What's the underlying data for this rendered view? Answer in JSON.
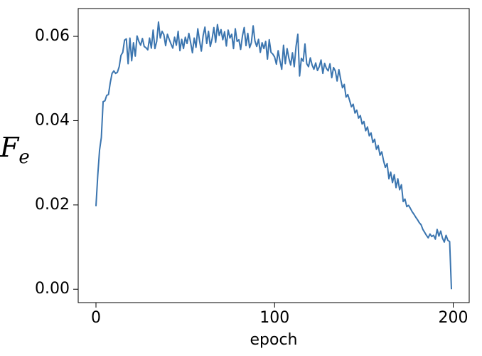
{
  "chart_data": {
    "type": "line",
    "xlabel": "epoch",
    "ylabel": "F",
    "ylabel_subscript": "e",
    "x": [
      0,
      1,
      2,
      3,
      4,
      5,
      6,
      7,
      8,
      9,
      10,
      11,
      12,
      13,
      14,
      15,
      16,
      17,
      18,
      19,
      20,
      21,
      22,
      23,
      24,
      25,
      26,
      27,
      28,
      29,
      30,
      31,
      32,
      33,
      34,
      35,
      36,
      37,
      38,
      39,
      40,
      41,
      42,
      43,
      44,
      45,
      46,
      47,
      48,
      49,
      50,
      51,
      52,
      53,
      54,
      55,
      56,
      57,
      58,
      59,
      60,
      61,
      62,
      63,
      64,
      65,
      66,
      67,
      68,
      69,
      70,
      71,
      72,
      73,
      74,
      75,
      76,
      77,
      78,
      79,
      80,
      81,
      82,
      83,
      84,
      85,
      86,
      87,
      88,
      89,
      90,
      91,
      92,
      93,
      94,
      95,
      96,
      97,
      98,
      99,
      100,
      101,
      102,
      103,
      104,
      105,
      106,
      107,
      108,
      109,
      110,
      111,
      112,
      113,
      114,
      115,
      116,
      117,
      118,
      119,
      120,
      121,
      122,
      123,
      124,
      125,
      126,
      127,
      128,
      129,
      130,
      131,
      132,
      133,
      134,
      135,
      136,
      137,
      138,
      139,
      140,
      141,
      142,
      143,
      144,
      145,
      146,
      147,
      148,
      149,
      150,
      151,
      152,
      153,
      154,
      155,
      156,
      157,
      158,
      159,
      160,
      161,
      162,
      163,
      164,
      165,
      166,
      167,
      168,
      169,
      170,
      171,
      172,
      173,
      174,
      175,
      176,
      177,
      178,
      179,
      180,
      181,
      182,
      183,
      184,
      185,
      186,
      187,
      188,
      189,
      190,
      191,
      192,
      193,
      194,
      195,
      196,
      197,
      198,
      199
    ],
    "series": [
      {
        "name": "F_e",
        "color": "#3b75af",
        "values": [
          0.0197,
          0.027,
          0.033,
          0.036,
          0.0445,
          0.0447,
          0.046,
          0.0462,
          0.049,
          0.0512,
          0.0518,
          0.0512,
          0.0515,
          0.0528,
          0.0555,
          0.0562,
          0.0591,
          0.0594,
          0.0535,
          0.0596,
          0.0542,
          0.0585,
          0.0553,
          0.0601,
          0.0588,
          0.0579,
          0.0595,
          0.0576,
          0.0573,
          0.0568,
          0.0596,
          0.0572,
          0.0615,
          0.0571,
          0.0588,
          0.0634,
          0.0596,
          0.0612,
          0.0604,
          0.0578,
          0.0605,
          0.0593,
          0.0582,
          0.0572,
          0.0598,
          0.0579,
          0.0612,
          0.0566,
          0.0593,
          0.0571,
          0.0598,
          0.0583,
          0.0607,
          0.0585,
          0.0561,
          0.0596,
          0.0574,
          0.0618,
          0.0589,
          0.0565,
          0.0602,
          0.0622,
          0.0583,
          0.0612,
          0.0576,
          0.0594,
          0.0621,
          0.0586,
          0.0628,
          0.0602,
          0.0616,
          0.0592,
          0.0611,
          0.0577,
          0.0615,
          0.0596,
          0.0605,
          0.0571,
          0.0618,
          0.0588,
          0.0592,
          0.0569,
          0.0601,
          0.0621,
          0.0578,
          0.0607,
          0.0573,
          0.0585,
          0.0625,
          0.0589,
          0.0576,
          0.0593,
          0.0562,
          0.0585,
          0.0571,
          0.0588,
          0.0546,
          0.0592,
          0.0562,
          0.0558,
          0.0551,
          0.0534,
          0.0566,
          0.0542,
          0.0522,
          0.0579,
          0.0535,
          0.0571,
          0.0548,
          0.0532,
          0.0561,
          0.0528,
          0.0576,
          0.0605,
          0.0506,
          0.0548,
          0.0541,
          0.0582,
          0.0535,
          0.0528,
          0.0549,
          0.0532,
          0.0522,
          0.0537,
          0.0519,
          0.0528,
          0.0544,
          0.0512,
          0.0536,
          0.0524,
          0.0518,
          0.0535,
          0.0502,
          0.0526,
          0.0518,
          0.0494,
          0.0521,
          0.0498,
          0.0478,
          0.0486,
          0.0456,
          0.0462,
          0.0448,
          0.0433,
          0.0439,
          0.0418,
          0.0425,
          0.0406,
          0.0412,
          0.0392,
          0.0398,
          0.0376,
          0.0385,
          0.0364,
          0.0371,
          0.0348,
          0.0356,
          0.0332,
          0.0341,
          0.0318,
          0.0326,
          0.0305,
          0.0289,
          0.0298,
          0.0262,
          0.0278,
          0.0253,
          0.0272,
          0.0241,
          0.0262,
          0.0236,
          0.0248,
          0.0208,
          0.0214,
          0.0196,
          0.0199,
          0.0192,
          0.0184,
          0.0178,
          0.0171,
          0.0165,
          0.0158,
          0.0153,
          0.0142,
          0.0135,
          0.0128,
          0.0122,
          0.0131,
          0.0125,
          0.0128,
          0.0119,
          0.0142,
          0.0126,
          0.0138,
          0.0121,
          0.0112,
          0.0128,
          0.0116,
          0.0113,
          0.0
        ]
      }
    ],
    "xlim": [
      -9.95,
      208.95
    ],
    "xticks": [
      0,
      100,
      200
    ],
    "ylim": [
      -0.00317,
      0.0666
    ],
    "yticks": [
      {
        "value": 0,
        "label": "0.00"
      },
      {
        "value": 0.02,
        "label": "0.02"
      },
      {
        "value": 0.04,
        "label": "0.04"
      },
      {
        "value": 0.06,
        "label": "0.06"
      }
    ],
    "grid": false
  }
}
